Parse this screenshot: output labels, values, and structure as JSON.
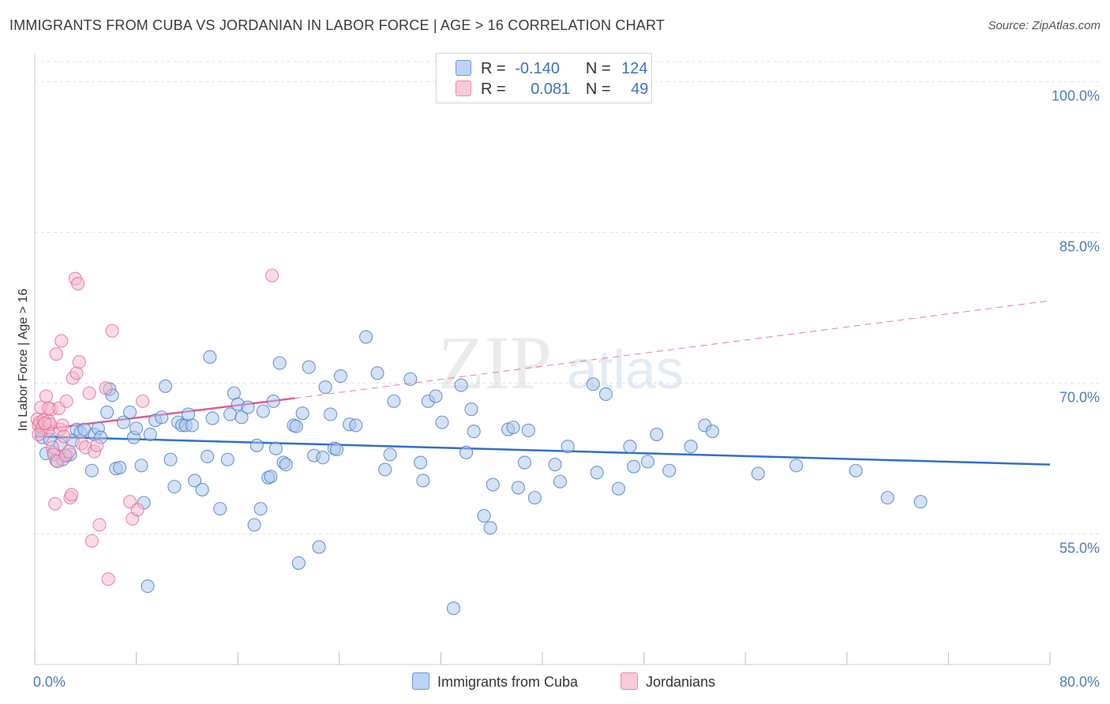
{
  "title": "IMMIGRANTS FROM CUBA VS JORDANIAN IN LABOR FORCE | AGE > 16 CORRELATION CHART",
  "source": "Source: ZipAtlas.com",
  "watermark": {
    "zip": "ZIP",
    "atlas": "atlas"
  },
  "legend": {
    "rows": [
      {
        "r_label": "R =",
        "r_value": "-0.140",
        "n_label": "N =",
        "n_value": "124"
      },
      {
        "r_label": "R =",
        "r_value": "0.081",
        "n_label": "N =",
        "n_value": "49"
      }
    ]
  },
  "colors": {
    "blue": "#4a7cc7",
    "blue_fill": "#a9c6ee",
    "blue_line": "#2f6fcb",
    "pink": "#e86a96",
    "pink_fill": "#f6b8cc",
    "pink_line": "#e15b8a",
    "grid": "#e3e3e3"
  },
  "chart_data": {
    "type": "scatter",
    "title": "IMMIGRANTS FROM CUBA VS JORDANIAN IN LABOR FORCE | AGE > 16 CORRELATION CHART",
    "xlabel": "",
    "ylabel": "In Labor Force | Age > 16",
    "xlim": [
      0,
      80
    ],
    "ylim": [
      42,
      102
    ],
    "x_tick_labels": [
      "0.0%",
      "80.0%"
    ],
    "y_ticks": [
      55,
      70,
      85,
      100
    ],
    "y_tick_labels": [
      "55.0%",
      "70.0%",
      "85.0%",
      "100.0%"
    ],
    "grid": true,
    "legend_position": "top-center",
    "series": [
      {
        "name": "Immigrants from Cuba",
        "r": -0.14,
        "n": 124,
        "trend": {
          "x": [
            0,
            80
          ],
          "y": [
            64.7,
            61.9
          ]
        },
        "points": [
          [
            0.5,
            65.3
          ],
          [
            0.6,
            64.6
          ],
          [
            0.9,
            63.0
          ],
          [
            1.2,
            64.4
          ],
          [
            1.5,
            63.1
          ],
          [
            1.7,
            62.3
          ],
          [
            2.0,
            63.9
          ],
          [
            2.2,
            62.4
          ],
          [
            2.5,
            62.8
          ],
          [
            2.8,
            62.9
          ],
          [
            3.0,
            64.3
          ],
          [
            3.3,
            65.4
          ],
          [
            3.6,
            65.1
          ],
          [
            3.9,
            65.4
          ],
          [
            4.5,
            61.3
          ],
          [
            4.7,
            64.9
          ],
          [
            5.0,
            65.5
          ],
          [
            5.2,
            64.6
          ],
          [
            5.7,
            67.1
          ],
          [
            5.9,
            69.4
          ],
          [
            6.1,
            68.8
          ],
          [
            6.4,
            61.5
          ],
          [
            6.7,
            61.6
          ],
          [
            7.0,
            66.1
          ],
          [
            7.5,
            67.1
          ],
          [
            7.8,
            64.6
          ],
          [
            8.0,
            65.5
          ],
          [
            8.4,
            61.8
          ],
          [
            8.6,
            58.1
          ],
          [
            8.9,
            49.8
          ],
          [
            9.1,
            64.9
          ],
          [
            9.5,
            66.3
          ],
          [
            10.0,
            66.6
          ],
          [
            10.3,
            69.7
          ],
          [
            10.7,
            62.4
          ],
          [
            11.0,
            59.7
          ],
          [
            11.3,
            66.1
          ],
          [
            11.6,
            65.8
          ],
          [
            11.9,
            65.8
          ],
          [
            12.1,
            66.9
          ],
          [
            12.4,
            65.8
          ],
          [
            12.6,
            60.3
          ],
          [
            13.2,
            59.4
          ],
          [
            13.6,
            62.7
          ],
          [
            13.8,
            72.6
          ],
          [
            14.0,
            66.5
          ],
          [
            14.6,
            57.5
          ],
          [
            15.2,
            62.4
          ],
          [
            15.4,
            66.9
          ],
          [
            15.7,
            69.0
          ],
          [
            16.0,
            67.9
          ],
          [
            16.3,
            66.6
          ],
          [
            16.8,
            67.6
          ],
          [
            17.3,
            55.9
          ],
          [
            17.5,
            63.8
          ],
          [
            17.8,
            57.5
          ],
          [
            18.0,
            67.2
          ],
          [
            18.4,
            60.6
          ],
          [
            18.6,
            60.7
          ],
          [
            18.8,
            68.2
          ],
          [
            19.0,
            63.5
          ],
          [
            19.3,
            72.0
          ],
          [
            19.6,
            62.1
          ],
          [
            19.8,
            61.9
          ],
          [
            20.4,
            65.8
          ],
          [
            20.6,
            65.7
          ],
          [
            20.8,
            52.1
          ],
          [
            21.1,
            67.0
          ],
          [
            21.6,
            71.6
          ],
          [
            22.0,
            62.8
          ],
          [
            22.4,
            53.7
          ],
          [
            22.7,
            62.6
          ],
          [
            22.9,
            69.6
          ],
          [
            23.3,
            66.9
          ],
          [
            23.6,
            63.5
          ],
          [
            23.8,
            63.4
          ],
          [
            24.1,
            70.7
          ],
          [
            24.8,
            65.9
          ],
          [
            25.3,
            65.8
          ],
          [
            26.1,
            74.6
          ],
          [
            27.0,
            71.0
          ],
          [
            27.6,
            61.4
          ],
          [
            28.0,
            62.9
          ],
          [
            28.3,
            68.2
          ],
          [
            29.6,
            70.4
          ],
          [
            30.4,
            62.1
          ],
          [
            30.6,
            60.3
          ],
          [
            31.0,
            68.2
          ],
          [
            31.6,
            68.7
          ],
          [
            32.1,
            66.1
          ],
          [
            33.0,
            47.6
          ],
          [
            33.6,
            69.8
          ],
          [
            34.0,
            63.1
          ],
          [
            34.4,
            67.4
          ],
          [
            34.6,
            65.2
          ],
          [
            35.4,
            56.8
          ],
          [
            35.9,
            55.6
          ],
          [
            36.1,
            59.9
          ],
          [
            37.3,
            65.4
          ],
          [
            37.7,
            65.6
          ],
          [
            38.1,
            59.6
          ],
          [
            38.6,
            62.1
          ],
          [
            38.9,
            65.3
          ],
          [
            39.4,
            58.6
          ],
          [
            41.0,
            61.9
          ],
          [
            41.4,
            60.2
          ],
          [
            42.0,
            63.7
          ],
          [
            44.0,
            69.9
          ],
          [
            44.3,
            61.1
          ],
          [
            45.0,
            68.9
          ],
          [
            46.0,
            59.5
          ],
          [
            46.9,
            63.7
          ],
          [
            47.2,
            61.7
          ],
          [
            48.3,
            62.2
          ],
          [
            49.0,
            64.9
          ],
          [
            50.0,
            61.3
          ],
          [
            51.7,
            63.7
          ],
          [
            52.8,
            65.8
          ],
          [
            53.4,
            65.2
          ],
          [
            57.0,
            61.0
          ],
          [
            60.0,
            61.8
          ],
          [
            64.7,
            61.3
          ],
          [
            67.2,
            58.6
          ],
          [
            69.8,
            58.2
          ]
        ]
      },
      {
        "name": "Jordanians",
        "r": 0.081,
        "n": 49,
        "trend": {
          "x": [
            0,
            20.5
          ],
          "y": [
            65.3,
            68.5
          ],
          "extended": {
            "x": [
              20.5,
              80
            ],
            "y": [
              68.5,
              78.2
            ]
          }
        },
        "points": [
          [
            0.2,
            66.4
          ],
          [
            0.3,
            65.8
          ],
          [
            0.4,
            66.1
          ],
          [
            0.5,
            67.6
          ],
          [
            0.6,
            65.6
          ],
          [
            0.7,
            66.3
          ],
          [
            0.9,
            68.7
          ],
          [
            1.0,
            65.3
          ],
          [
            1.1,
            66.2
          ],
          [
            1.2,
            65.9
          ],
          [
            1.3,
            67.4
          ],
          [
            1.4,
            63.6
          ],
          [
            1.5,
            62.9
          ],
          [
            1.6,
            58.0
          ],
          [
            1.7,
            72.9
          ],
          [
            1.8,
            62.2
          ],
          [
            1.9,
            67.5
          ],
          [
            2.0,
            65.4
          ],
          [
            2.1,
            74.2
          ],
          [
            2.2,
            65.8
          ],
          [
            2.3,
            64.7
          ],
          [
            2.4,
            62.8
          ],
          [
            2.5,
            68.2
          ],
          [
            2.7,
            63.2
          ],
          [
            2.8,
            58.6
          ],
          [
            2.9,
            58.9
          ],
          [
            3.0,
            70.5
          ],
          [
            3.2,
            80.4
          ],
          [
            3.3,
            71.0
          ],
          [
            3.4,
            79.9
          ],
          [
            3.5,
            72.1
          ],
          [
            3.7,
            64.0
          ],
          [
            4.0,
            63.6
          ],
          [
            4.3,
            69.0
          ],
          [
            4.5,
            54.3
          ],
          [
            4.7,
            63.2
          ],
          [
            4.9,
            63.8
          ],
          [
            5.1,
            55.9
          ],
          [
            5.6,
            69.5
          ],
          [
            5.8,
            50.5
          ],
          [
            6.1,
            75.2
          ],
          [
            7.5,
            58.2
          ],
          [
            7.7,
            56.5
          ],
          [
            8.1,
            57.4
          ],
          [
            8.5,
            68.2
          ],
          [
            18.7,
            80.7
          ],
          [
            0.3,
            64.9
          ],
          [
            0.8,
            66.0
          ],
          [
            1.1,
            67.5
          ]
        ]
      }
    ]
  },
  "bottom_legend": [
    "Immigrants from Cuba",
    "Jordanians"
  ]
}
